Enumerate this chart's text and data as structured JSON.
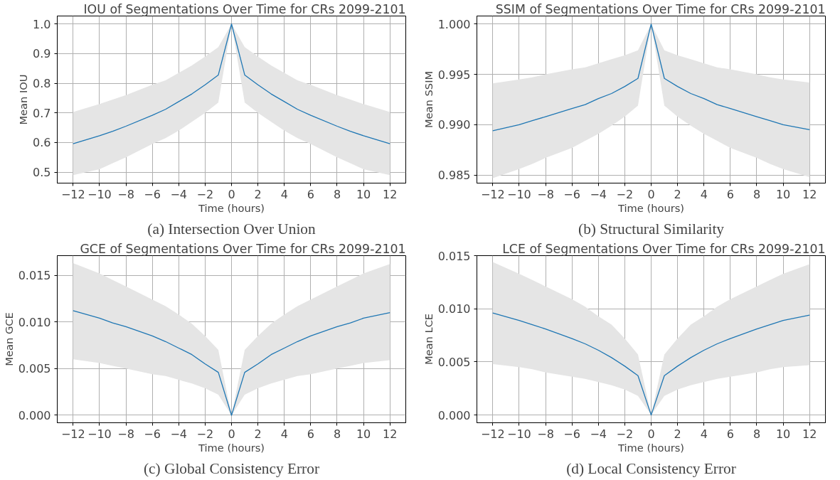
{
  "chart_data": [
    {
      "type": "line",
      "title": "IOU of Segmentations Over Time for CRs 2099-2101",
      "xlabel": "Time (hours)",
      "ylabel": "Mean IOU",
      "annotations": [
        "(a) Intersection Over Union"
      ],
      "grid": true,
      "x": [
        -12,
        -10,
        -9,
        -8,
        -6,
        -5,
        -4,
        -3,
        -2,
        -1,
        0,
        1,
        2,
        3,
        4,
        5,
        6,
        8,
        9,
        10,
        12
      ],
      "series": [
        {
          "color": "#1f77b4",
          "values": [
            0.596,
            0.623,
            0.638,
            0.655,
            0.692,
            0.712,
            0.738,
            0.764,
            0.795,
            0.828,
            1.0,
            0.828,
            0.795,
            0.764,
            0.738,
            0.712,
            0.692,
            0.655,
            0.638,
            0.623,
            0.596
          ],
          "lower": [
            0.49,
            0.51,
            0.53,
            0.55,
            0.595,
            0.615,
            0.64,
            0.67,
            0.7,
            0.735,
            1.0,
            0.735,
            0.7,
            0.67,
            0.64,
            0.615,
            0.595,
            0.55,
            0.53,
            0.51,
            0.49
          ],
          "upper": [
            0.703,
            0.73,
            0.745,
            0.76,
            0.795,
            0.81,
            0.835,
            0.86,
            0.89,
            0.922,
            1.0,
            0.922,
            0.89,
            0.86,
            0.835,
            0.81,
            0.795,
            0.76,
            0.745,
            0.73,
            0.703
          ]
        }
      ],
      "xlim": [
        -13.2,
        13.2
      ],
      "ylim": [
        0.463,
        1.027
      ],
      "xticks": [
        {
          "value": -12,
          "label": "−12"
        },
        {
          "value": -10,
          "label": "−10"
        },
        {
          "value": -8,
          "label": "−8"
        },
        {
          "value": -6,
          "label": "−6"
        },
        {
          "value": -4,
          "label": "−4"
        },
        {
          "value": -2,
          "label": "−2"
        },
        0,
        2,
        4,
        6,
        8,
        10,
        12
      ],
      "yticks": [
        {
          "value": 0.5,
          "label": "0.5"
        },
        {
          "value": 0.6,
          "label": "0.6"
        },
        {
          "value": 0.7,
          "label": "0.7"
        },
        {
          "value": 0.8,
          "label": "0.8"
        },
        {
          "value": 0.9,
          "label": "0.9"
        },
        {
          "value": 1.0,
          "label": "1.0"
        }
      ]
    },
    {
      "type": "line",
      "title": "SSIM of Segmentations Over Time for CRs 2099-2101",
      "xlabel": "Time (hours)",
      "ylabel": "Mean SSIM",
      "annotations": [
        "(b) Structural Similarity"
      ],
      "grid": true,
      "x": [
        -12,
        -10,
        -9,
        -8,
        -6,
        -5,
        -4,
        -3,
        -2,
        -1,
        0,
        1,
        2,
        3,
        4,
        5,
        6,
        8,
        9,
        10,
        12
      ],
      "series": [
        {
          "color": "#1f77b4",
          "values": [
            0.9894,
            0.99,
            0.9904,
            0.9908,
            0.9916,
            0.992,
            0.9926,
            0.9931,
            0.9938,
            0.9946,
            1.0,
            0.9946,
            0.9938,
            0.9931,
            0.9926,
            0.992,
            0.9916,
            0.9908,
            0.9904,
            0.99,
            0.9895
          ],
          "lower": [
            0.9847,
            0.9856,
            0.9861,
            0.9867,
            0.9877,
            0.9884,
            0.9891,
            0.9899,
            0.9908,
            0.9919,
            1.0,
            0.9919,
            0.9908,
            0.9899,
            0.9891,
            0.9884,
            0.9877,
            0.9867,
            0.9861,
            0.9856,
            0.9848
          ],
          "upper": [
            0.9941,
            0.9945,
            0.9947,
            0.995,
            0.9955,
            0.9957,
            0.9961,
            0.9965,
            0.9969,
            0.9974,
            1.0,
            0.9974,
            0.9969,
            0.9965,
            0.9961,
            0.9957,
            0.9955,
            0.995,
            0.9947,
            0.9945,
            0.9942
          ]
        }
      ],
      "xlim": [
        -13.2,
        13.2
      ],
      "ylim": [
        0.9842,
        1.0008
      ],
      "xticks": [
        {
          "value": -12,
          "label": "−12"
        },
        {
          "value": -10,
          "label": "−10"
        },
        {
          "value": -8,
          "label": "−8"
        },
        {
          "value": -6,
          "label": "−6"
        },
        {
          "value": -4,
          "label": "−4"
        },
        {
          "value": -2,
          "label": "−2"
        },
        0,
        2,
        4,
        6,
        8,
        10,
        12
      ],
      "yticks": [
        {
          "value": 0.985,
          "label": "0.985"
        },
        {
          "value": 0.99,
          "label": "0.990"
        },
        {
          "value": 0.995,
          "label": "0.995"
        },
        {
          "value": 1.0,
          "label": "1.000"
        }
      ]
    },
    {
      "type": "line",
      "title": "GCE of Segmentations Over Time for CRs 2099-2101",
      "xlabel": "Time (hours)",
      "ylabel": "Mean GCE",
      "annotations": [
        "(c) Global Consistency Error"
      ],
      "grid": true,
      "x": [
        -12,
        -10,
        -9,
        -8,
        -6,
        -5,
        -4,
        -3,
        -2,
        -1,
        0,
        1,
        2,
        3,
        4,
        5,
        6,
        8,
        9,
        10,
        12
      ],
      "series": [
        {
          "color": "#1f77b4",
          "values": [
            0.0112,
            0.0104,
            0.0099,
            0.0095,
            0.0085,
            0.0079,
            0.0072,
            0.0065,
            0.0055,
            0.0046,
            0.0,
            0.0046,
            0.0055,
            0.0065,
            0.0072,
            0.0079,
            0.0085,
            0.0095,
            0.0099,
            0.0104,
            0.011
          ],
          "lower": [
            0.006,
            0.0056,
            0.0053,
            0.005,
            0.0044,
            0.0042,
            0.0038,
            0.0034,
            0.0029,
            0.0022,
            0.0,
            0.0022,
            0.0029,
            0.0034,
            0.0038,
            0.0042,
            0.0044,
            0.005,
            0.0053,
            0.0056,
            0.0059
          ],
          "upper": [
            0.0163,
            0.0152,
            0.0145,
            0.0138,
            0.0124,
            0.0117,
            0.0108,
            0.0098,
            0.0085,
            0.007,
            0.0,
            0.007,
            0.0085,
            0.0098,
            0.0108,
            0.0117,
            0.0124,
            0.0138,
            0.0145,
            0.0152,
            0.0162
          ]
        }
      ],
      "xlim": [
        -13.2,
        13.2
      ],
      "ylim": [
        -0.0008,
        0.0171
      ],
      "xticks": [
        {
          "value": -12,
          "label": "−12"
        },
        {
          "value": -10,
          "label": "−10"
        },
        {
          "value": -8,
          "label": "−8"
        },
        {
          "value": -6,
          "label": "−6"
        },
        {
          "value": -4,
          "label": "−4"
        },
        {
          "value": -2,
          "label": "−2"
        },
        0,
        2,
        4,
        6,
        8,
        10,
        12
      ],
      "yticks": [
        {
          "value": 0,
          "label": "0.000"
        },
        {
          "value": 0.005,
          "label": "0.005"
        },
        {
          "value": 0.01,
          "label": "0.010"
        },
        {
          "value": 0.015,
          "label": "0.015"
        }
      ]
    },
    {
      "type": "line",
      "title": "LCE of Segmentations Over Time for CRs 2099-2101",
      "xlabel": "Time (hours)",
      "ylabel": "Mean LCE",
      "annotations": [
        "(d) Local Consistency Error"
      ],
      "grid": true,
      "x": [
        -12,
        -10,
        -9,
        -8,
        -6,
        -5,
        -4,
        -3,
        -2,
        -1,
        0,
        1,
        2,
        3,
        4,
        5,
        6,
        8,
        9,
        10,
        12
      ],
      "series": [
        {
          "color": "#1f77b4",
          "values": [
            0.0096,
            0.0089,
            0.0085,
            0.0081,
            0.0072,
            0.0067,
            0.0061,
            0.0054,
            0.0046,
            0.0037,
            0.0,
            0.0037,
            0.0046,
            0.0054,
            0.0061,
            0.0067,
            0.0072,
            0.0081,
            0.0085,
            0.0089,
            0.0094
          ],
          "lower": [
            0.0048,
            0.0045,
            0.0043,
            0.004,
            0.0036,
            0.0034,
            0.0031,
            0.0028,
            0.0024,
            0.0018,
            0.0,
            0.0018,
            0.0024,
            0.0028,
            0.0031,
            0.0034,
            0.0036,
            0.004,
            0.0043,
            0.0045,
            0.0047
          ],
          "upper": [
            0.0144,
            0.0133,
            0.0127,
            0.0121,
            0.0109,
            0.0102,
            0.0093,
            0.0085,
            0.0072,
            0.0057,
            0.0,
            0.0057,
            0.0072,
            0.0085,
            0.0093,
            0.0102,
            0.0109,
            0.0121,
            0.0127,
            0.0133,
            0.0142
          ]
        }
      ],
      "xlim": [
        -13.2,
        13.2
      ],
      "ylim": [
        -0.00073,
        0.015
      ],
      "xticks": [
        {
          "value": -12,
          "label": "−12"
        },
        {
          "value": -10,
          "label": "−10"
        },
        {
          "value": -8,
          "label": "−8"
        },
        {
          "value": -6,
          "label": "−6"
        },
        {
          "value": -4,
          "label": "−4"
        },
        {
          "value": -2,
          "label": "−2"
        },
        0,
        2,
        4,
        6,
        8,
        10,
        12
      ],
      "yticks": [
        {
          "value": 0,
          "label": "0.000"
        },
        {
          "value": 0.005,
          "label": "0.005"
        },
        {
          "value": 0.01,
          "label": "0.010"
        },
        {
          "value": 0.015,
          "label": "0.015"
        }
      ]
    }
  ]
}
